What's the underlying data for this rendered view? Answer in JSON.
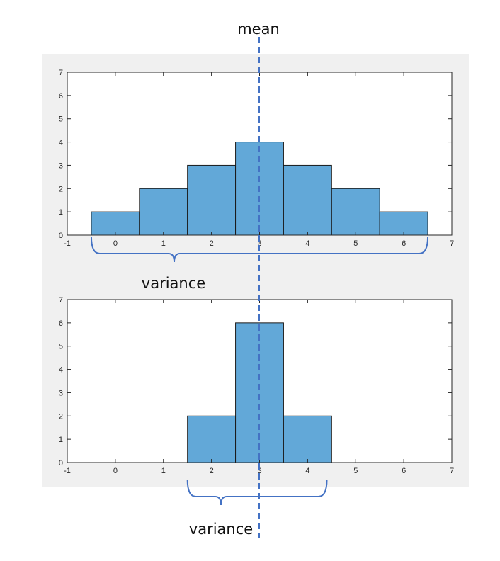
{
  "colors": {
    "bar": "#62a8d8",
    "bracket": "#4472c4",
    "mean_line": "#4472c4",
    "panel_bg": "#f0f0f0",
    "plot_bg": "#ffffff"
  },
  "annotations": {
    "mean": "mean",
    "variance_top": "variance",
    "variance_bottom": "variance"
  },
  "chart_data": [
    {
      "type": "bar",
      "bin_width": 1,
      "x": [
        0,
        1,
        2,
        3,
        4,
        5,
        6
      ],
      "values": [
        1,
        2,
        3,
        4,
        3,
        2,
        1
      ],
      "xlim": [
        -1,
        7
      ],
      "ylim": [
        0,
        7
      ],
      "xticks": [
        "-1",
        "0",
        "1",
        "2",
        "3",
        "4",
        "5",
        "6",
        "7"
      ],
      "yticks": [
        "0",
        "1",
        "2",
        "3",
        "4",
        "5",
        "6",
        "7"
      ],
      "mean": 3,
      "variance_span": [
        -0.5,
        6.5
      ]
    },
    {
      "type": "bar",
      "bin_width": 1,
      "x": [
        2,
        3,
        4
      ],
      "values": [
        2,
        6,
        2
      ],
      "xlim": [
        -1,
        7
      ],
      "ylim": [
        0,
        7
      ],
      "xticks": [
        "-1",
        "0",
        "1",
        "2",
        "3",
        "4",
        "5",
        "6",
        "7"
      ],
      "yticks": [
        "0",
        "1",
        "2",
        "3",
        "4",
        "5",
        "6",
        "7"
      ],
      "mean": 3,
      "variance_span": [
        1.5,
        4.4
      ]
    }
  ]
}
